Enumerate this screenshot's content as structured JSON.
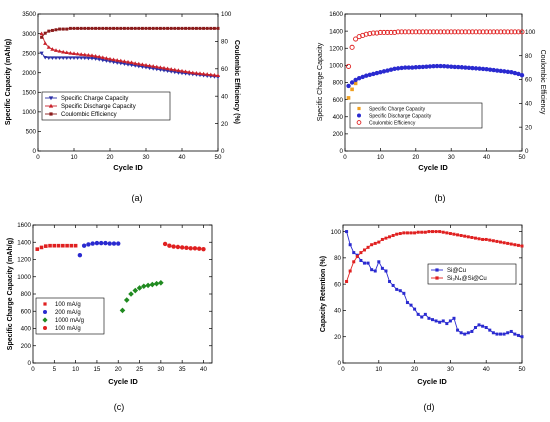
{
  "chart_data": [
    {
      "type": "line",
      "panel_label": "(a)",
      "xlabel": "Cycle ID",
      "ylabel": "Specific Capacity (mAh/g)",
      "ylabel_right": "Coulombic Efficiency (%)",
      "xlim": [
        0,
        50
      ],
      "ylim": [
        0,
        3500
      ],
      "ylim_right": [
        0,
        100
      ],
      "xticks": [
        0,
        10,
        20,
        30,
        40,
        50
      ],
      "yticks": [
        0,
        500,
        1000,
        1500,
        2000,
        2500,
        3000,
        3500
      ],
      "yticks_right": [
        0,
        20,
        40,
        60,
        80,
        100
      ],
      "legend_position": "middle-left",
      "series": [
        {
          "name": "Specific Charge Capacity",
          "axis": "left",
          "color": "#2b2fa8",
          "marker": "triangle-down",
          "x": [
            1,
            2,
            3,
            4,
            5,
            6,
            7,
            8,
            9,
            10,
            11,
            12,
            13,
            14,
            15,
            16,
            17,
            18,
            19,
            20,
            21,
            22,
            23,
            24,
            25,
            26,
            27,
            28,
            29,
            30,
            31,
            32,
            33,
            34,
            35,
            36,
            37,
            38,
            39,
            40,
            41,
            42,
            43,
            44,
            45,
            46,
            47,
            48,
            49,
            50
          ],
          "values": [
            2500,
            2390,
            2380,
            2380,
            2380,
            2380,
            2380,
            2380,
            2380,
            2380,
            2380,
            2380,
            2375,
            2370,
            2365,
            2355,
            2340,
            2320,
            2305,
            2290,
            2270,
            2255,
            2240,
            2225,
            2210,
            2195,
            2180,
            2165,
            2150,
            2135,
            2120,
            2105,
            2090,
            2075,
            2060,
            2045,
            2030,
            2015,
            2000,
            1990,
            1980,
            1970,
            1960,
            1950,
            1940,
            1930,
            1920,
            1910,
            1900,
            1890
          ]
        },
        {
          "name": "Specific Discharge Capacity",
          "axis": "left",
          "color": "#c8202a",
          "marker": "triangle-up",
          "x": [
            1,
            2,
            3,
            4,
            5,
            6,
            7,
            8,
            9,
            10,
            11,
            12,
            13,
            14,
            15,
            16,
            17,
            18,
            19,
            20,
            21,
            22,
            23,
            24,
            25,
            26,
            27,
            28,
            29,
            30,
            31,
            32,
            33,
            34,
            35,
            36,
            37,
            38,
            39,
            40,
            41,
            42,
            43,
            44,
            45,
            46,
            47,
            48,
            49,
            50
          ],
          "values": [
            3000,
            2750,
            2650,
            2600,
            2570,
            2550,
            2530,
            2515,
            2500,
            2490,
            2480,
            2470,
            2460,
            2450,
            2440,
            2425,
            2410,
            2390,
            2370,
            2350,
            2335,
            2320,
            2305,
            2290,
            2275,
            2260,
            2240,
            2225,
            2210,
            2195,
            2180,
            2165,
            2150,
            2135,
            2120,
            2105,
            2090,
            2075,
            2060,
            2045,
            2030,
            2015,
            2000,
            1990,
            1980,
            1970,
            1960,
            1950,
            1940,
            1930
          ]
        },
        {
          "name": "Coulombic Efficiency",
          "axis": "right",
          "color": "#8a1a1a",
          "marker": "square",
          "x": [
            1,
            2,
            3,
            4,
            5,
            6,
            7,
            8,
            9,
            10,
            11,
            12,
            13,
            14,
            15,
            16,
            17,
            18,
            19,
            20,
            21,
            22,
            23,
            24,
            25,
            26,
            27,
            28,
            29,
            30,
            31,
            32,
            33,
            34,
            35,
            36,
            37,
            38,
            39,
            40,
            41,
            42,
            43,
            44,
            45,
            46,
            47,
            48,
            49,
            50
          ],
          "values": [
            83,
            86,
            87.5,
            88,
            88.5,
            89,
            89,
            89,
            89.5,
            89.5,
            89.5,
            89.5,
            89.5,
            89.5,
            89.5,
            89.5,
            89.5,
            89.5,
            89.5,
            89.5,
            89.5,
            89.5,
            89.5,
            89.5,
            89.5,
            89.5,
            89.5,
            89.5,
            89.5,
            89.5,
            89.5,
            89.5,
            89.5,
            89.5,
            89.5,
            89.5,
            89.5,
            89.5,
            89.5,
            89.5,
            89.5,
            89.5,
            89.5,
            89.5,
            89.5,
            89.5,
            89.5,
            89.5,
            89.5,
            89.5
          ]
        }
      ]
    },
    {
      "type": "scatter",
      "panel_label": "(b)",
      "xlabel": "Cycle ID",
      "ylabel": "Specific Charge Capacity",
      "ylabel_right": "Coulombic Efficiency",
      "xlim": [
        0,
        50
      ],
      "ylim": [
        0,
        1600
      ],
      "ylim_right": [
        0,
        115
      ],
      "xticks": [
        0,
        10,
        20,
        30,
        40,
        50
      ],
      "yticks": [
        0,
        200,
        400,
        600,
        800,
        1000,
        1200,
        1400,
        1600
      ],
      "yticks_right": [
        0,
        20,
        40,
        60,
        80,
        100
      ],
      "legend_position": "bottom-left",
      "series": [
        {
          "name": "Specific Charge Capacity",
          "axis": "left",
          "color": "#f0a020",
          "marker": "square",
          "x": [
            1,
            2,
            3
          ],
          "values": [
            620,
            720,
            790
          ]
        },
        {
          "name": "Specific Discharge Capacity",
          "axis": "left",
          "color": "#2a2ad0",
          "marker": "circle",
          "x": [
            1,
            2,
            3,
            4,
            5,
            6,
            7,
            8,
            9,
            10,
            11,
            12,
            13,
            14,
            15,
            16,
            17,
            18,
            19,
            20,
            21,
            22,
            23,
            24,
            25,
            26,
            27,
            28,
            29,
            30,
            31,
            32,
            33,
            34,
            35,
            36,
            37,
            38,
            39,
            40,
            41,
            42,
            43,
            44,
            45,
            46,
            47,
            48,
            49,
            50
          ],
          "values": [
            760,
            800,
            830,
            850,
            865,
            880,
            890,
            900,
            910,
            920,
            930,
            940,
            950,
            960,
            965,
            970,
            975,
            975,
            975,
            978,
            980,
            982,
            985,
            988,
            990,
            992,
            992,
            990,
            988,
            985,
            982,
            980,
            978,
            975,
            972,
            968,
            965,
            962,
            958,
            955,
            950,
            945,
            940,
            935,
            930,
            925,
            920,
            910,
            900,
            885
          ]
        },
        {
          "name": "Coulombic Efficiency",
          "axis": "right",
          "color": "#e02020",
          "marker": "circle-open",
          "x": [
            1,
            2,
            3,
            4,
            5,
            6,
            7,
            8,
            9,
            10,
            11,
            12,
            13,
            14,
            15,
            16,
            17,
            18,
            19,
            20,
            21,
            22,
            23,
            24,
            25,
            26,
            27,
            28,
            29,
            30,
            31,
            32,
            33,
            34,
            35,
            36,
            37,
            38,
            39,
            40,
            41,
            42,
            43,
            44,
            45,
            46,
            47,
            48,
            49,
            50
          ],
          "values": [
            71,
            87,
            94,
            96,
            97,
            98,
            98.5,
            99,
            99,
            99.5,
            99.5,
            99.5,
            99.5,
            99.5,
            100,
            100,
            100,
            100,
            100,
            100,
            100,
            100,
            100,
            100,
            100,
            100,
            100,
            100,
            100,
            100,
            100,
            100,
            100,
            100,
            100,
            100,
            100,
            100,
            100,
            100,
            100,
            100,
            100,
            100,
            100,
            100,
            100,
            100,
            100,
            100
          ]
        }
      ]
    },
    {
      "type": "scatter",
      "panel_label": "(c)",
      "xlabel": "Cycle ID",
      "ylabel": "Specific Charge Capacity (mAh/g)",
      "xlim": [
        0,
        42
      ],
      "ylim": [
        0,
        1600
      ],
      "xticks": [
        0,
        5,
        10,
        15,
        20,
        25,
        30,
        35,
        40
      ],
      "yticks": [
        0,
        200,
        400,
        600,
        800,
        1000,
        1200,
        1400,
        1600
      ],
      "legend_position": "bottom-left",
      "series": [
        {
          "name": "100 mA/g",
          "color": "#e02020",
          "marker": "square",
          "x": [
            1,
            2,
            3,
            4,
            5,
            6,
            7,
            8,
            9,
            10
          ],
          "values": [
            1320,
            1340,
            1355,
            1360,
            1360,
            1360,
            1360,
            1360,
            1360,
            1360
          ]
        },
        {
          "name": "200 mA/g",
          "color": "#2a2ad0",
          "marker": "circle",
          "x": [
            11,
            12,
            13,
            14,
            15,
            16,
            17,
            18,
            19,
            20
          ],
          "values": [
            1250,
            1360,
            1375,
            1385,
            1390,
            1390,
            1390,
            1385,
            1385,
            1385
          ]
        },
        {
          "name": "1000 mA/g",
          "color": "#208a20",
          "marker": "diamond",
          "x": [
            21,
            22,
            23,
            24,
            25,
            26,
            27,
            28,
            29,
            30
          ],
          "values": [
            610,
            730,
            800,
            840,
            870,
            890,
            900,
            910,
            920,
            930
          ]
        },
        {
          "name": "100 mA/g",
          "color": "#e02020",
          "marker": "circle",
          "x": [
            31,
            32,
            33,
            34,
            35,
            36,
            37,
            38,
            39,
            40
          ],
          "values": [
            1380,
            1360,
            1350,
            1345,
            1340,
            1335,
            1330,
            1330,
            1325,
            1320
          ]
        }
      ]
    },
    {
      "type": "line",
      "panel_label": "(d)",
      "xlabel": "Cycle ID",
      "ylabel": "Capacity Retention (%)",
      "xlim": [
        0,
        50
      ],
      "ylim": [
        0,
        105
      ],
      "xticks": [
        0,
        10,
        20,
        30,
        40,
        50
      ],
      "yticks": [
        0,
        20,
        40,
        60,
        80,
        100
      ],
      "legend_position": "middle-right",
      "series": [
        {
          "name": "Si@Cu",
          "color": "#2a2ad0",
          "marker": "square",
          "x": [
            1,
            2,
            3,
            4,
            5,
            6,
            7,
            8,
            9,
            10,
            11,
            12,
            13,
            14,
            15,
            16,
            17,
            18,
            19,
            20,
            21,
            22,
            23,
            24,
            25,
            26,
            27,
            28,
            29,
            30,
            31,
            32,
            33,
            34,
            35,
            36,
            37,
            38,
            39,
            40,
            41,
            42,
            43,
            44,
            45,
            46,
            47,
            48,
            49,
            50
          ],
          "values": [
            100,
            90,
            84,
            82,
            78,
            76,
            76,
            71,
            70,
            77,
            72,
            70,
            62,
            59,
            56,
            55,
            53,
            46,
            44,
            41,
            37,
            35,
            37,
            34,
            33,
            32,
            31,
            32,
            30,
            32,
            34,
            25,
            23,
            22,
            23,
            24,
            27,
            29,
            28,
            27,
            25,
            23,
            22,
            22,
            22,
            23,
            24,
            22,
            21,
            20
          ]
        },
        {
          "name": "Si₃N₄@Si@Cu",
          "color": "#e02020",
          "marker": "square",
          "x": [
            1,
            2,
            3,
            4,
            5,
            6,
            7,
            8,
            9,
            10,
            11,
            12,
            13,
            14,
            15,
            16,
            17,
            18,
            19,
            20,
            21,
            22,
            23,
            24,
            25,
            26,
            27,
            28,
            29,
            30,
            31,
            32,
            33,
            34,
            35,
            36,
            37,
            38,
            39,
            40,
            41,
            42,
            43,
            44,
            45,
            46,
            47,
            48,
            49,
            50
          ],
          "values": [
            62,
            70,
            77,
            81,
            84,
            86,
            88,
            90,
            91,
            92,
            94,
            95,
            96,
            97,
            98,
            98.5,
            99,
            99,
            99,
            99,
            99.5,
            99.5,
            99.5,
            100,
            100,
            100,
            100,
            99.5,
            99,
            98.5,
            98,
            97.5,
            97,
            96.5,
            96,
            95.5,
            95,
            94.5,
            94,
            94,
            93.5,
            93,
            92.5,
            92,
            91.5,
            91,
            90.5,
            90,
            89.5,
            89
          ]
        }
      ]
    }
  ]
}
